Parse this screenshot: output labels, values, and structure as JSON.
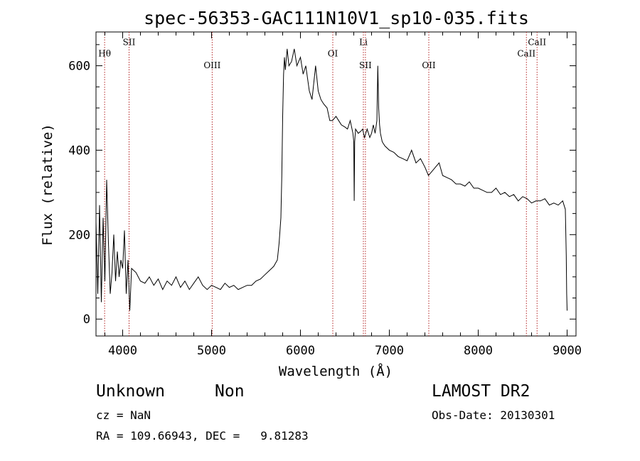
{
  "chart_data": {
    "type": "line",
    "title": "spec-56353-GAC111N10V1_sp10-035.fits",
    "xlabel": "Wavelength (Å)",
    "ylabel": "Flux (relative)",
    "xlim": [
      3700,
      9100
    ],
    "ylim": [
      -40,
      680
    ],
    "x_ticks": [
      4000,
      5000,
      6000,
      7000,
      8000,
      9000
    ],
    "x_tick_labels": [
      "4000",
      "5000",
      "6000",
      "7000",
      "8000",
      "9000"
    ],
    "y_ticks": [
      0,
      200,
      400,
      600
    ],
    "y_tick_labels": [
      "0",
      "200",
      "400",
      "600"
    ],
    "grid": false,
    "line_color": "#000000",
    "marker_color": "#b22222",
    "series": [
      {
        "x": [
          3700,
          3720,
          3740,
          3760,
          3780,
          3800,
          3820,
          3840,
          3860,
          3880,
          3900,
          3920,
          3940,
          3960,
          3980,
          4000,
          4020,
          4040,
          4060,
          4080,
          4100,
          4150,
          4200,
          4250,
          4300,
          4350,
          4400,
          4450,
          4500,
          4550,
          4600,
          4650,
          4700,
          4750,
          4800,
          4850,
          4900,
          4950,
          5000,
          5050,
          5100,
          5150,
          5200,
          5250,
          5300,
          5350,
          5400,
          5450,
          5500,
          5550,
          5600,
          5650,
          5700,
          5740,
          5760,
          5780,
          5790,
          5800,
          5810,
          5820,
          5830,
          5850,
          5870,
          5900,
          5930,
          5960,
          6000,
          6030,
          6060,
          6100,
          6130,
          6150,
          6170,
          6200,
          6230,
          6260,
          6300,
          6330,
          6360,
          6400,
          6430,
          6460,
          6500,
          6530,
          6560,
          6590,
          6600,
          6605,
          6610,
          6620,
          6650,
          6680,
          6700,
          6720,
          6750,
          6780,
          6800,
          6820,
          6840,
          6860,
          6870,
          6880,
          6890,
          6900,
          6920,
          6950,
          7000,
          7050,
          7100,
          7150,
          7200,
          7250,
          7300,
          7350,
          7400,
          7440,
          7480,
          7520,
          7560,
          7600,
          7650,
          7700,
          7750,
          7800,
          7850,
          7900,
          7950,
          8000,
          8050,
          8100,
          8150,
          8200,
          8250,
          8300,
          8350,
          8400,
          8450,
          8500,
          8550,
          8600,
          8650,
          8700,
          8750,
          8800,
          8850,
          8900,
          8950,
          8980,
          8990,
          8995,
          9000
        ],
        "y": [
          230,
          60,
          270,
          40,
          240,
          90,
          330,
          180,
          60,
          110,
          200,
          90,
          160,
          100,
          140,
          120,
          210,
          60,
          140,
          20,
          120,
          110,
          90,
          85,
          100,
          80,
          95,
          70,
          90,
          80,
          100,
          75,
          90,
          70,
          85,
          100,
          80,
          70,
          80,
          75,
          70,
          85,
          75,
          80,
          70,
          75,
          80,
          80,
          90,
          95,
          105,
          115,
          125,
          140,
          180,
          240,
          340,
          480,
          580,
          620,
          590,
          640,
          600,
          610,
          640,
          600,
          620,
          580,
          600,
          540,
          520,
          560,
          600,
          540,
          520,
          510,
          500,
          470,
          470,
          480,
          470,
          460,
          455,
          450,
          470,
          440,
          420,
          280,
          420,
          450,
          440,
          445,
          450,
          430,
          450,
          430,
          440,
          460,
          440,
          470,
          600,
          500,
          460,
          440,
          420,
          410,
          400,
          395,
          385,
          380,
          375,
          400,
          370,
          380,
          360,
          340,
          350,
          360,
          370,
          340,
          335,
          330,
          320,
          320,
          315,
          325,
          310,
          310,
          305,
          300,
          300,
          310,
          295,
          300,
          290,
          295,
          280,
          290,
          285,
          275,
          280,
          280,
          285,
          270,
          275,
          270,
          280,
          260,
          150,
          60,
          20
        ]
      }
    ],
    "marker_lines": [
      {
        "label": "Hθ",
        "x": 3797,
        "label_y": 622
      },
      {
        "label": "SII",
        "x": 4072,
        "label_y": 649
      },
      {
        "label": "OIII",
        "x": 5007,
        "label_y": 594
      },
      {
        "label": "OI",
        "x": 6364,
        "label_y": 622
      },
      {
        "label": "Li",
        "x": 6708,
        "label_y": 649
      },
      {
        "label": "SII",
        "x": 6731,
        "label_y": 594
      },
      {
        "label": "OII",
        "x": 7444,
        "label_y": 594
      },
      {
        "label": "CaII",
        "x": 8542,
        "label_y": 622
      },
      {
        "label": "CaII",
        "x": 8662,
        "label_y": 649
      }
    ]
  },
  "footer": {
    "object": "Unknown",
    "type": "Non",
    "survey": "LAMOST DR2",
    "cz": "cz = NaN",
    "obs_date": "Obs-Date: 20130301",
    "coords": "RA = 109.66943, DEC =   9.81283"
  }
}
